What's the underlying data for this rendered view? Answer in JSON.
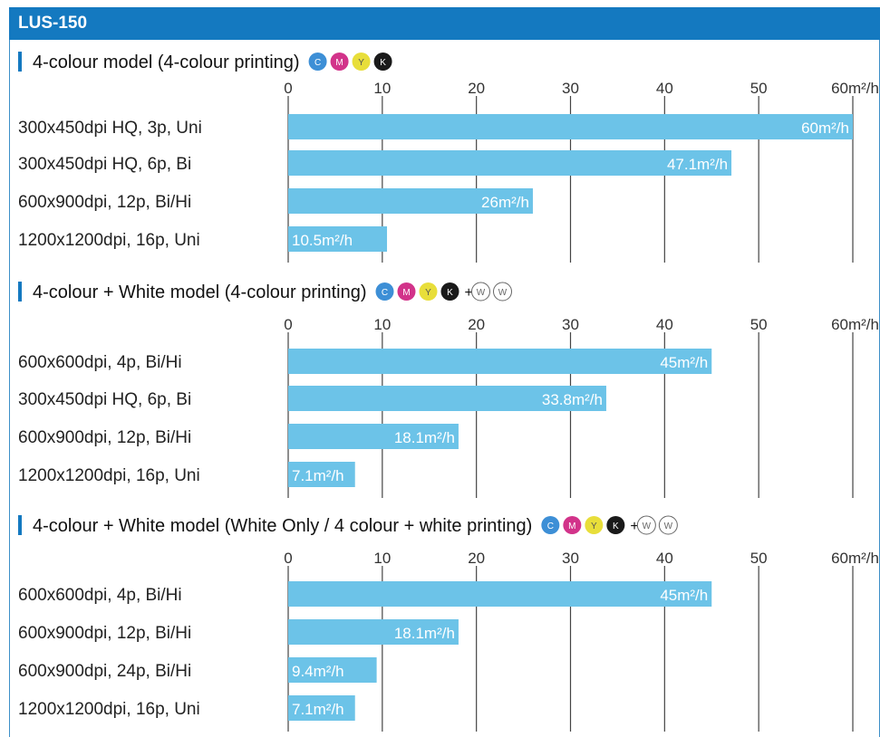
{
  "header": {
    "title": "LUS-150"
  },
  "colors": {
    "bar": "#6cc3e8",
    "header": "#1479c0",
    "accent_bar": "#1479c0",
    "grid": "#444444",
    "ink_c": "#3d8fd6",
    "ink_m": "#d2338a",
    "ink_y": "#e8de3a",
    "ink_k": "#1a1a1a"
  },
  "chart_data": [
    {
      "type": "bar",
      "orientation": "horizontal",
      "title": "4-colour model (4-colour printing)",
      "inks": [
        "C",
        "M",
        "Y",
        "K"
      ],
      "white_inks": [],
      "xlim": [
        0,
        60
      ],
      "ticks": [
        "0",
        "10",
        "20",
        "30",
        "40",
        "50",
        "60m²/h"
      ],
      "categories": [
        "300x450dpi HQ, 3p, Uni",
        "300x450dpi HQ, 6p, Bi",
        "600x900dpi, 12p, Bi/Hi",
        "1200x1200dpi, 16p, Uni"
      ],
      "values": [
        60,
        47.1,
        26,
        10.5
      ],
      "value_labels": [
        "60m²/h",
        "47.1m²/h",
        "26m²/h",
        "10.5m²/h"
      ],
      "grid": true
    },
    {
      "type": "bar",
      "orientation": "horizontal",
      "title": "4-colour + White model (4-colour printing)",
      "inks": [
        "C",
        "M",
        "Y",
        "K"
      ],
      "white_inks": [
        "W",
        "W"
      ],
      "xlim": [
        0,
        60
      ],
      "ticks": [
        "0",
        "10",
        "20",
        "30",
        "40",
        "50",
        "60m²/h"
      ],
      "categories": [
        "600x600dpi, 4p, Bi/Hi",
        "300x450dpi HQ, 6p, Bi",
        "600x900dpi, 12p, Bi/Hi",
        "1200x1200dpi, 16p, Uni"
      ],
      "values": [
        45,
        33.8,
        18.1,
        7.1
      ],
      "value_labels": [
        "45m²/h",
        "33.8m²/h",
        "18.1m²/h",
        "7.1m²/h"
      ],
      "grid": true
    },
    {
      "type": "bar",
      "orientation": "horizontal",
      "title": "4-colour + White model (White Only / 4 colour + white printing)",
      "inks": [
        "C",
        "M",
        "Y",
        "K"
      ],
      "white_inks": [
        "W",
        "W"
      ],
      "xlim": [
        0,
        60
      ],
      "ticks": [
        "0",
        "10",
        "20",
        "30",
        "40",
        "50",
        "60m²/h"
      ],
      "categories": [
        "600x600dpi, 4p, Bi/Hi",
        "600x900dpi, 12p, Bi/Hi",
        "600x900dpi, 24p, Bi/Hi",
        "1200x1200dpi, 16p, Uni"
      ],
      "values": [
        45,
        18.1,
        9.4,
        7.1
      ],
      "value_labels": [
        "45m²/h",
        "18.1m²/h",
        "9.4m²/h",
        "7.1m²/h"
      ],
      "grid": true
    }
  ]
}
